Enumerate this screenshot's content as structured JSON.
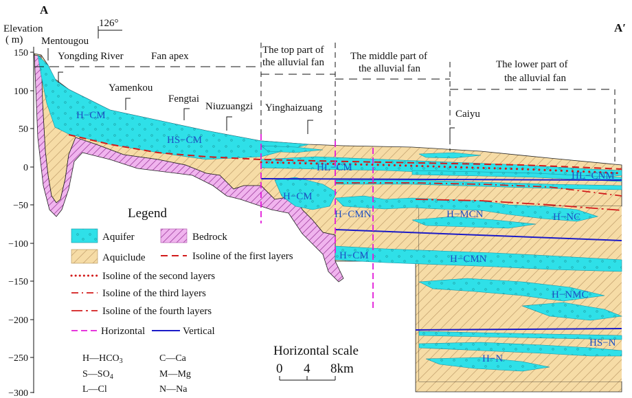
{
  "figure": {
    "section_start": "A",
    "section_end": "A′",
    "direction": "126°",
    "y_axis": {
      "label_line1": "Elevation",
      "label_line2": "( m)",
      "ticks": [
        "150",
        "100",
        "50",
        "0",
        "−50",
        "−100",
        "−150",
        "−200",
        "−250",
        "−300"
      ]
    }
  },
  "places": {
    "mentougou": "Mentougou",
    "yamenkou": "Yamenkou",
    "fengtai": "Fengtai",
    "niuzuangzi": "Niuzuangzi",
    "yinghaizuang": "Yinghaizuang",
    "caiyu": "Caiyu"
  },
  "zones": {
    "yongding": "Yongding River",
    "fan_apex": "Fan apex",
    "top_line1": "The top part of",
    "top_line2": "the alluvial fan",
    "middle_line1": "The middle part of",
    "middle_line2": "the alluvial fan",
    "lower_line1": "The lower part of",
    "lower_line2": "the alluvial fan"
  },
  "units": {
    "h_cm_1": "H−CM",
    "hs_cm": "HS−CM",
    "hl_cm": "HL−CM",
    "hl_cnm": "HL−CNM",
    "h_cm_2": "H−CM",
    "h_cmn_1": "H−CMN",
    "h_mcn": "H−MCN",
    "h_nc": "H−NC",
    "h_cm_3": "H−CM",
    "h_cmn_2": "H−CMN",
    "h_nmc": "H−NMC",
    "hs_n": "HS−N",
    "h_n": "H−N"
  },
  "legend": {
    "title": "Legend",
    "aquifer": "Aquifer",
    "bedrock": "Bedrock",
    "aquiclude": "Aquiclude",
    "isoline_first": "Isoline of the first layers",
    "isoline_second": "Isoline of the second layers",
    "isoline_third": "Isoline of the third layers",
    "isoline_fourth": "Isoline of the fourth layers",
    "horizontal": "Horizontal",
    "vertical": "Vertical"
  },
  "abbreviations": {
    "h": "H—HCO",
    "h_sub": "3",
    "s": "S—SO",
    "s_sub": "4",
    "l": "L—Cl",
    "c": "C—Ca",
    "m": "M—Mg",
    "n": "N—Na"
  },
  "scale": {
    "title": "Horizontal scale",
    "tick_0": "0",
    "tick_4": "4",
    "tick_8": "8km"
  },
  "colors": {
    "aquifer": "#2fe0e8",
    "aquiclude": "#f6dca6",
    "bedrock": "#f0b4ee",
    "isoline": "#d21a1a",
    "horizontal_section": "#e21ad8",
    "vertical_section": "#1a1ac8",
    "unit_label": "#1d4fc4"
  }
}
